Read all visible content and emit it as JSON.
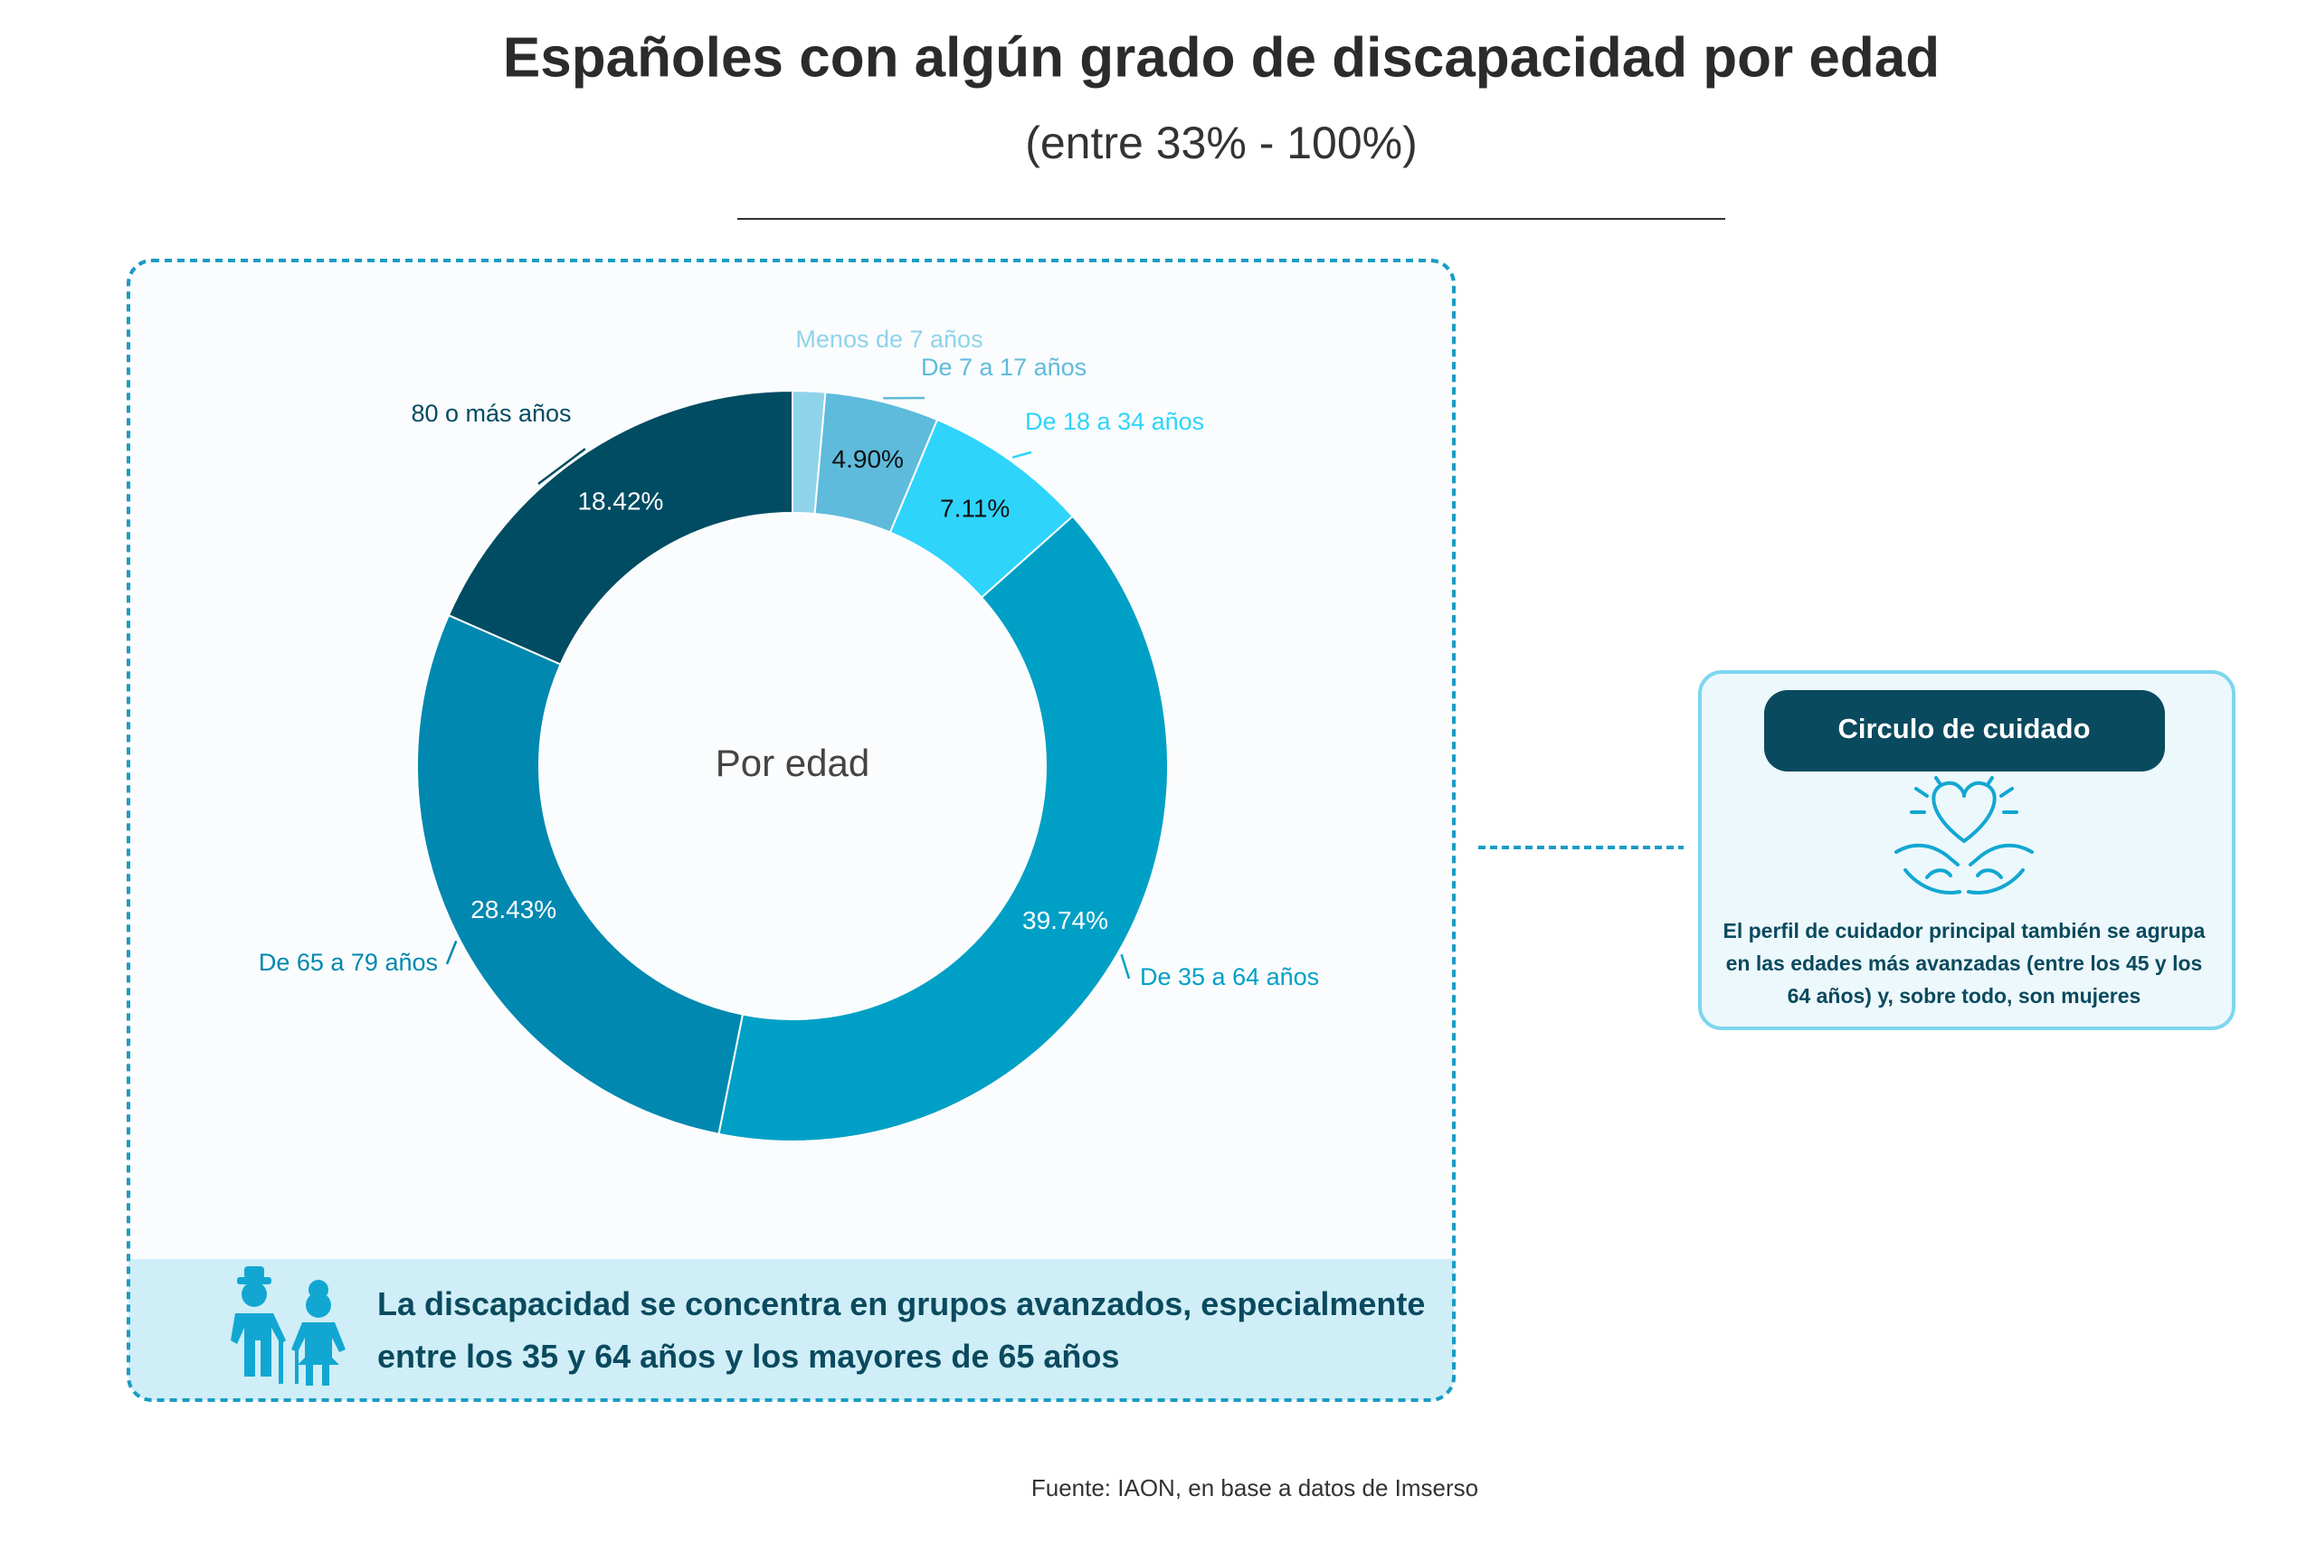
{
  "chart_data": {
    "type": "pie",
    "title": "Españoles con algún grado de discapacidad por edad",
    "subtitle": "(entre 33% - 100%)",
    "center_label": "Por edad",
    "categories": [
      "Menos de 7 años",
      "De 7 a 17 años",
      "De 18 a 34 años",
      "De 35 a 64 años",
      "De 65 a 79 años",
      "80 o más años"
    ],
    "values": [
      1.4,
      4.9,
      7.11,
      39.74,
      28.43,
      18.42
    ],
    "value_labels": [
      null,
      "4.90%",
      "7.11%",
      "39.74%",
      "28.43%",
      "18.42%"
    ],
    "colors": [
      "#8fd3ea",
      "#5ebbdc",
      "#2fd4fb",
      "#00a0c6",
      "#0088b0",
      "#004c63"
    ]
  },
  "banner": {
    "lines": [
      "La discapacidad se concentra en grupos avanzados, especialmente",
      "entre los 35 y 64 años y los mayores de 65 años"
    ]
  },
  "callout": {
    "title": "Circulo de cuidado",
    "lines": [
      "El perfil de cuidador principal también se agrupa",
      "en las edades más avanzadas (entre los 45 y los",
      "64 años) y, sobre todo, son mujeres"
    ]
  },
  "source": "Fuente: IAON, en base a datos de Imserso"
}
